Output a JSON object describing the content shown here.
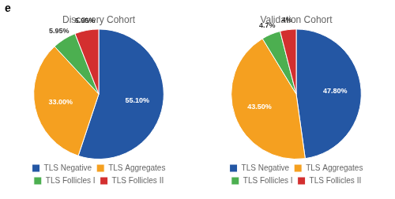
{
  "chart_data": [
    {
      "type": "pie",
      "title": "Discovery Cohort",
      "annotations": [
        "e"
      ],
      "categories": [
        "TLS Negative",
        "TLS Aggregates",
        "TLS Follicles I",
        "TLS Follicles II"
      ],
      "values": [
        55.1,
        33.0,
        5.95,
        5.95
      ],
      "value_labels": [
        "55.10%",
        "33.00%",
        "5.95%",
        "5.95%"
      ],
      "colors": [
        "#2457a4",
        "#f5a020",
        "#4caf50",
        "#d32f2f"
      ],
      "data_labels": true,
      "legend": "bottom"
    },
    {
      "type": "pie",
      "title": "Validation Cohort",
      "categories": [
        "TLS Negative",
        "TLS Aggregates",
        "TLS Follicles I",
        "TLS Follicles II"
      ],
      "values": [
        47.8,
        43.5,
        4.7,
        4.0
      ],
      "value_labels": [
        "47.80%",
        "43.50%",
        "4.7%",
        "4%"
      ],
      "colors": [
        "#2457a4",
        "#f5a020",
        "#4caf50",
        "#d32f2f"
      ],
      "data_labels": true,
      "legend": "bottom"
    }
  ]
}
